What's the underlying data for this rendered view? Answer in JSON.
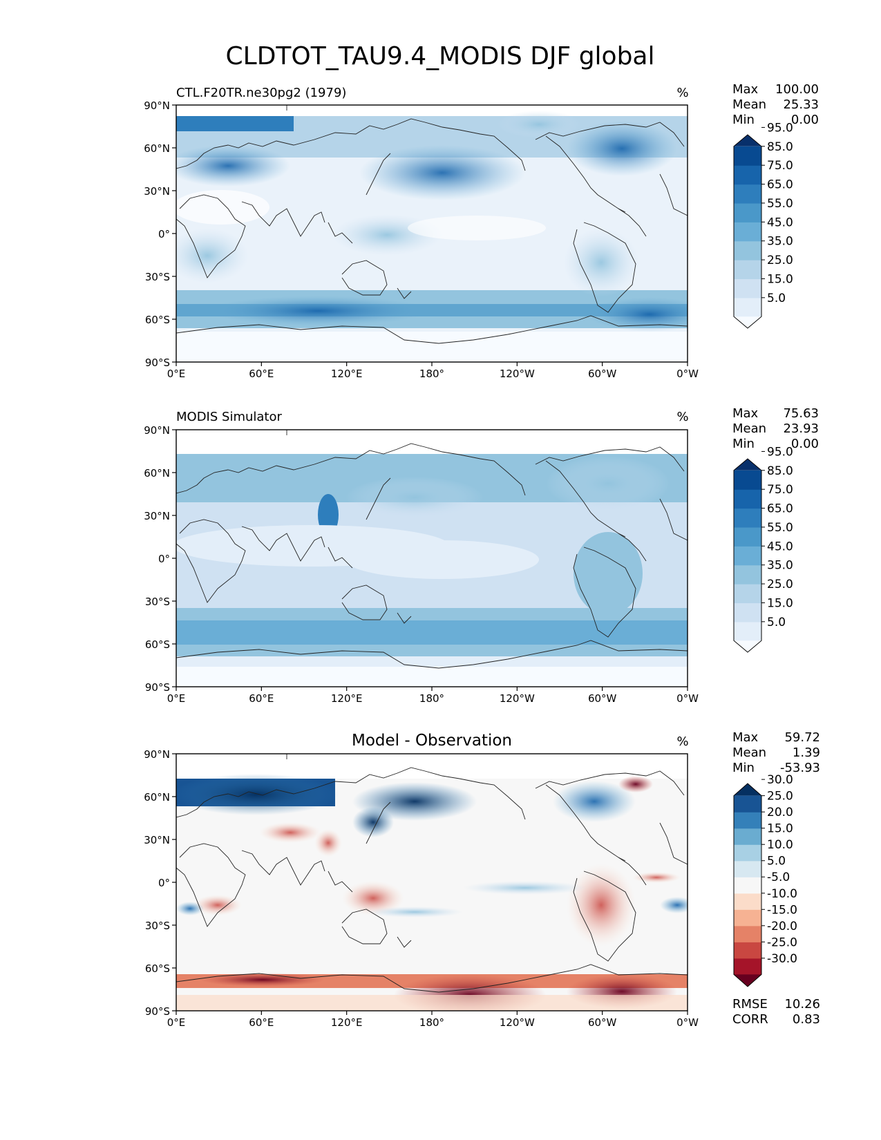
{
  "figure": {
    "title": "CLDTOT_TAU9.4_MODIS DJF global"
  },
  "axes": {
    "lat_ticks": [
      "90°N",
      "60°N",
      "30°N",
      "0°",
      "30°S",
      "60°S",
      "90°S"
    ],
    "lon_ticks": [
      "0°E",
      "60°E",
      "120°E",
      "180°",
      "120°W",
      "60°W",
      "0°W"
    ]
  },
  "panels": [
    {
      "id": "test",
      "title_left": "CTL.F20TR.ne30pg2 (1979)",
      "title_center": "",
      "units": "%",
      "stats": [
        {
          "label": "Max",
          "value": "100.00"
        },
        {
          "label": "Mean",
          "value": "25.33"
        },
        {
          "label": "Min",
          "value": "0.00"
        }
      ],
      "colorbar": {
        "colors": [
          "#f7fbff",
          "#e3eef9",
          "#cfe1f2",
          "#b5d4e9",
          "#93c4de",
          "#6aaed6",
          "#4a98c9",
          "#2e7ebc",
          "#1764ab",
          "#084a91",
          "#08306b"
        ],
        "labels": [
          "5.0",
          "15.0",
          "25.0",
          "35.0",
          "45.0",
          "55.0",
          "65.0",
          "75.0",
          "85.0",
          "95.0"
        ]
      }
    },
    {
      "id": "reference",
      "title_left": "MODIS Simulator",
      "title_center": "",
      "units": "%",
      "stats": [
        {
          "label": "Max",
          "value": "75.63"
        },
        {
          "label": "Mean",
          "value": "23.93"
        },
        {
          "label": "Min",
          "value": "0.00"
        }
      ],
      "colorbar": {
        "colors": [
          "#f7fbff",
          "#e3eef9",
          "#cfe1f2",
          "#b5d4e9",
          "#93c4de",
          "#6aaed6",
          "#4a98c9",
          "#2e7ebc",
          "#1764ab",
          "#084a91",
          "#08306b"
        ],
        "labels": [
          "5.0",
          "15.0",
          "25.0",
          "35.0",
          "45.0",
          "55.0",
          "65.0",
          "75.0",
          "85.0",
          "95.0"
        ]
      }
    },
    {
      "id": "diff",
      "title_left": "",
      "title_center": "Model - Observation",
      "units": "%",
      "stats": [
        {
          "label": "Max",
          "value": "59.72"
        },
        {
          "label": "Mean",
          "value": "1.39"
        },
        {
          "label": "Min",
          "value": "-53.93"
        }
      ],
      "extra_stats": [
        {
          "label": "RMSE",
          "value": "10.26"
        },
        {
          "label": "CORR",
          "value": "0.83"
        }
      ],
      "colorbar": {
        "colors": [
          "#67001f",
          "#a51429",
          "#c94741",
          "#e58267",
          "#f6b293",
          "#fbdcc9",
          "#f7f7f7",
          "#d7e8f1",
          "#a8d0e4",
          "#6aacd0",
          "#3480b9",
          "#185494",
          "#053061"
        ],
        "labels": [
          "-30.0",
          "-25.0",
          "-20.0",
          "-15.0",
          "-10.0",
          "-5.0",
          "5.0",
          "10.0",
          "15.0",
          "20.0",
          "25.0",
          "30.0"
        ]
      }
    }
  ]
}
